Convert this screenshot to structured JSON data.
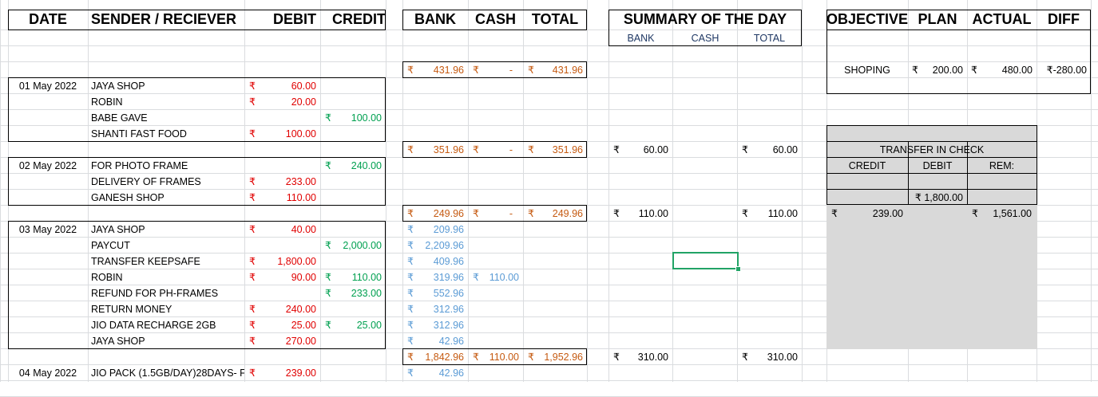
{
  "currency": "₹",
  "ledger": {
    "headers": {
      "date": "DATE",
      "party": "SENDER / RECIEVER",
      "debit": "DEBIT",
      "credit": "CREDIT"
    },
    "groups": [
      {
        "date": "01 May 2022",
        "rows": [
          {
            "party": "JAYA SHOP",
            "debit": "60.00",
            "credit": ""
          },
          {
            "party": "ROBIN",
            "debit": "20.00",
            "credit": ""
          },
          {
            "party": "BABE GAVE",
            "debit": "",
            "credit": "100.00"
          },
          {
            "party": "SHANTI FAST FOOD",
            "debit": "100.00",
            "credit": ""
          }
        ]
      },
      {
        "date": "02 May 2022",
        "rows": [
          {
            "party": "FOR PHOTO FRAME",
            "debit": "",
            "credit": "240.00"
          },
          {
            "party": "DELIVERY OF FRAMES",
            "debit": "233.00",
            "credit": ""
          },
          {
            "party": "GANESH SHOP",
            "debit": "110.00",
            "credit": ""
          }
        ]
      },
      {
        "date": "03 May 2022",
        "rows": [
          {
            "party": "JAYA SHOP",
            "debit": "40.00",
            "credit": ""
          },
          {
            "party": "PAYCUT",
            "debit": "",
            "credit": "2,000.00"
          },
          {
            "party": "TRANSFER KEEPSAFE",
            "debit": "1,800.00",
            "credit": ""
          },
          {
            "party": "ROBIN",
            "debit": "90.00",
            "credit": "110.00"
          },
          {
            "party": "REFUND FOR PH-FRAMES",
            "debit": "",
            "credit": "233.00"
          },
          {
            "party": "RETURN MONEY",
            "debit": "240.00",
            "credit": ""
          },
          {
            "party": "JIO DATA RECHARGE 2GB",
            "debit": "25.00",
            "credit": "25.00"
          },
          {
            "party": "JAYA SHOP",
            "debit": "270.00",
            "credit": ""
          }
        ]
      },
      {
        "date": "04 May 2022",
        "rows": [
          {
            "party": "JIO PACK (1.5GB/DAY)28DAYS- F",
            "debit": "239.00",
            "credit": ""
          }
        ]
      }
    ]
  },
  "balance": {
    "headers": {
      "bank": "BANK",
      "cash": "CASH",
      "total": "TOTAL"
    },
    "dash": "-",
    "totals": [
      {
        "bank": "431.96",
        "cash": "",
        "total": "431.96"
      },
      {
        "bank": "351.96",
        "cash": "",
        "total": "351.96"
      },
      {
        "bank": "249.96",
        "cash": "",
        "total": "249.96"
      },
      {
        "bank": "1,842.96",
        "cash": "110.00",
        "total": "1,952.96"
      }
    ],
    "running": [
      {
        "bank": "209.96",
        "cash": ""
      },
      {
        "bank": "2,209.96",
        "cash": ""
      },
      {
        "bank": "409.96",
        "cash": ""
      },
      {
        "bank": "319.96",
        "cash": "110.00"
      },
      {
        "bank": "552.96",
        "cash": ""
      },
      {
        "bank": "312.96",
        "cash": ""
      },
      {
        "bank": "312.96",
        "cash": ""
      },
      {
        "bank": "42.96",
        "cash": ""
      },
      {
        "bank": "42.96",
        "cash": ""
      }
    ]
  },
  "summary": {
    "title": "SUMMARY OF THE DAY",
    "subheaders": {
      "bank": "BANK",
      "cash": "CASH",
      "total": "TOTAL"
    },
    "rows": [
      {
        "bank": "60.00",
        "total": "60.00"
      },
      {
        "bank": "110.00",
        "total": "110.00"
      },
      {
        "bank": "310.00",
        "total": "310.00"
      }
    ]
  },
  "objective": {
    "headers": {
      "objective": "OBJECTIVE",
      "plan": "PLAN",
      "actual": "ACTUAL",
      "diff": "DIFF"
    },
    "row": {
      "objective": "SHOPING",
      "plan": "200.00",
      "actual": "480.00",
      "diff": "₹-280.00"
    }
  },
  "transfer": {
    "title": "TRANSFER IN CHECK",
    "headers": {
      "credit": "CREDIT",
      "debit": "DEBIT",
      "rem": "REM:"
    },
    "debit_value": "₹ 1,800.00",
    "credit_total": "239.00",
    "rem_total": "1,561.00"
  },
  "colors": {
    "debit": "#e00000",
    "credit": "#00a050",
    "total": "#c55a11",
    "running": "#5b9bd5",
    "selection": "#21a366",
    "panel": "#d9d9d9"
  }
}
